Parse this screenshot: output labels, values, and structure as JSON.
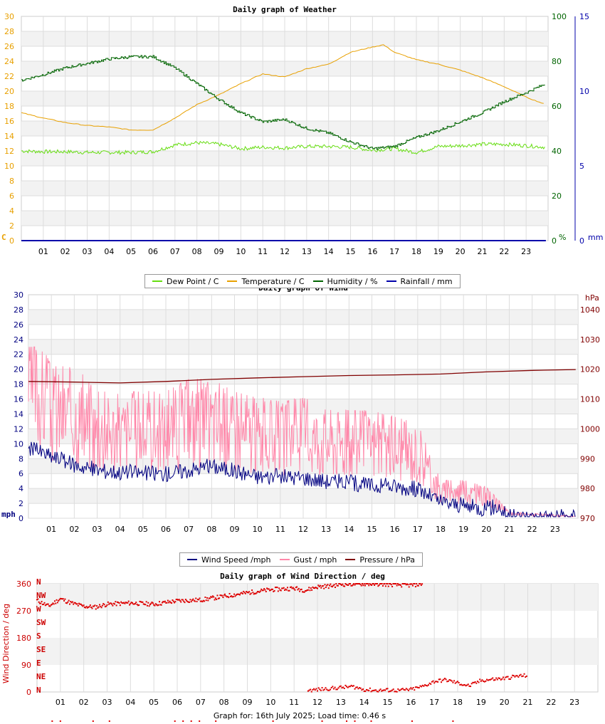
{
  "chart_data": [
    {
      "id": "weather",
      "type": "line",
      "title": "Daily graph of Weather",
      "hours": [
        "01",
        "02",
        "03",
        "04",
        "05",
        "06",
        "07",
        "08",
        "09",
        "10",
        "11",
        "12",
        "13",
        "14",
        "15",
        "16",
        "17",
        "18",
        "19",
        "20",
        "21",
        "22",
        "23"
      ],
      "x_range": [
        0,
        24
      ],
      "left_axis": {
        "unit_label": "C",
        "ylim": [
          0,
          30
        ],
        "ticks": [
          0,
          2,
          4,
          6,
          8,
          10,
          12,
          14,
          16,
          18,
          20,
          22,
          24,
          26,
          28,
          30
        ],
        "color": "#e8a000"
      },
      "right_axis_1": {
        "unit_label": "%",
        "ylim": [
          0,
          100
        ],
        "ticks": [
          0,
          20,
          40,
          60,
          80,
          100
        ],
        "color": "#006400"
      },
      "right_axis_2": {
        "unit_label": "mm",
        "ylim": [
          0,
          15
        ],
        "ticks": [
          0,
          5,
          10,
          15
        ],
        "color": "#0000aa"
      },
      "series": [
        {
          "name": "Dew Point / C",
          "color": "#66dd11",
          "axis": "left",
          "points": [
            [
              0,
              12
            ],
            [
              1,
              11.9
            ],
            [
              2,
              11.9
            ],
            [
              3,
              11.8
            ],
            [
              4,
              11.8
            ],
            [
              5,
              11.8
            ],
            [
              6,
              11.9
            ],
            [
              7,
              12.8
            ],
            [
              8,
              13.1
            ],
            [
              9,
              12.9
            ],
            [
              10,
              12.3
            ],
            [
              11,
              12.5
            ],
            [
              12,
              12.4
            ],
            [
              13,
              12.6
            ],
            [
              14,
              12.6
            ],
            [
              15,
              12.5
            ],
            [
              16,
              12.1
            ],
            [
              17,
              12.3
            ],
            [
              18,
              11.8
            ],
            [
              19,
              12.6
            ],
            [
              20,
              12.7
            ],
            [
              21,
              12.9
            ],
            [
              22,
              12.9
            ],
            [
              23,
              12.7
            ],
            [
              23.9,
              12.5
            ]
          ]
        },
        {
          "name": "Temperature / C",
          "color": "#e8a000",
          "axis": "left",
          "points": [
            [
              0,
              17.1
            ],
            [
              1,
              16.4
            ],
            [
              2,
              15.8
            ],
            [
              3,
              15.4
            ],
            [
              4,
              15.2
            ],
            [
              5,
              14.8
            ],
            [
              6,
              14.8
            ],
            [
              7,
              16.4
            ],
            [
              8,
              18.2
            ],
            [
              9,
              19.5
            ],
            [
              10,
              21.0
            ],
            [
              11,
              22.3
            ],
            [
              12,
              21.9
            ],
            [
              13,
              23.0
            ],
            [
              14,
              23.6
            ],
            [
              15,
              25.2
            ],
            [
              16,
              25.9
            ],
            [
              16.5,
              26.2
            ],
            [
              17,
              25.2
            ],
            [
              18,
              24.2
            ],
            [
              19,
              23.6
            ],
            [
              20,
              22.8
            ],
            [
              21,
              21.8
            ],
            [
              22,
              20.6
            ],
            [
              23,
              19.2
            ],
            [
              23.9,
              18.2
            ]
          ]
        },
        {
          "name": "Humidity / %",
          "color": "#006400",
          "axis": "right_1",
          "points": [
            [
              0,
              71.5
            ],
            [
              1,
              74
            ],
            [
              2,
              77
            ],
            [
              3,
              79
            ],
            [
              4,
              81
            ],
            [
              5,
              82
            ],
            [
              6,
              82
            ],
            [
              7,
              77
            ],
            [
              8,
              70
            ],
            [
              9,
              63
            ],
            [
              10,
              57
            ],
            [
              11,
              53
            ],
            [
              12,
              54
            ],
            [
              13,
              50
            ],
            [
              14,
              48
            ],
            [
              15,
              44
            ],
            [
              16,
              41
            ],
            [
              17,
              42
            ],
            [
              18,
              46
            ],
            [
              19,
              49
            ],
            [
              20,
              53
            ],
            [
              21,
              57
            ],
            [
              22,
              62
            ],
            [
              23,
              66
            ],
            [
              23.9,
              70
            ]
          ]
        },
        {
          "name": "Rainfall / mm",
          "color": "#0000aa",
          "axis": "right_2",
          "points": [
            [
              0,
              0
            ],
            [
              23.9,
              0
            ]
          ]
        }
      ]
    },
    {
      "id": "wind",
      "type": "line",
      "title": "Daily graph of Wind",
      "hours": [
        "01",
        "02",
        "03",
        "04",
        "05",
        "06",
        "07",
        "08",
        "09",
        "10",
        "11",
        "12",
        "13",
        "14",
        "15",
        "16",
        "17",
        "18",
        "19",
        "20",
        "21",
        "22",
        "23"
      ],
      "x_range": [
        0,
        24
      ],
      "left_axis": {
        "unit_label": "mph",
        "ylim": [
          0,
          30
        ],
        "ticks": [
          0,
          2,
          4,
          6,
          8,
          10,
          12,
          14,
          16,
          18,
          20,
          22,
          24,
          26,
          28,
          30
        ],
        "color": "#000080"
      },
      "right_axis": {
        "unit_label": "hPa",
        "ylim": [
          970,
          1045
        ],
        "ticks": [
          970,
          980,
          990,
          1000,
          1010,
          1020,
          1030,
          1040
        ],
        "color": "#800000"
      },
      "series": [
        {
          "name": "Wind Speed /mph",
          "color": "#000080",
          "axis": "left",
          "points": [
            [
              0,
              9.5
            ],
            [
              1,
              8.3
            ],
            [
              2,
              7.2
            ],
            [
              3,
              6.5
            ],
            [
              4,
              6.2
            ],
            [
              5,
              6.1
            ],
            [
              6,
              6.0
            ],
            [
              7,
              6.5
            ],
            [
              8,
              7.0
            ],
            [
              9,
              6.4
            ],
            [
              10,
              5.6
            ],
            [
              11,
              5.6
            ],
            [
              12,
              5.5
            ],
            [
              13,
              5.0
            ],
            [
              14,
              4.8
            ],
            [
              15,
              4.4
            ],
            [
              16,
              4.3
            ],
            [
              17,
              3.9
            ],
            [
              18,
              2.2
            ],
            [
              19,
              1.7
            ],
            [
              20,
              1.3
            ],
            [
              20.5,
              1.6
            ],
            [
              21,
              0.2
            ],
            [
              23.9,
              0.2
            ]
          ]
        },
        {
          "name": "Gust / mph",
          "color": "#ff88aa",
          "axis": "left",
          "points": [
            [
              0,
              16
            ],
            [
              1,
              12
            ],
            [
              2,
              12
            ],
            [
              3,
              10
            ],
            [
              4,
              10
            ],
            [
              5,
              10
            ],
            [
              6,
              10
            ],
            [
              7,
              11
            ],
            [
              8,
              11
            ],
            [
              9,
              10
            ],
            [
              10,
              9.5
            ],
            [
              11,
              9.2
            ],
            [
              12,
              9.5
            ],
            [
              13,
              9
            ],
            [
              14,
              8.5
            ],
            [
              15,
              8.5
            ],
            [
              16,
              8
            ],
            [
              17,
              7.5
            ],
            [
              18,
              3
            ],
            [
              19,
              3
            ],
            [
              20,
              2.5
            ],
            [
              21,
              0.5
            ],
            [
              23.9,
              0.2
            ]
          ]
        },
        {
          "name": "Pressure / hPa",
          "color": "#800000",
          "axis": "right",
          "points": [
            [
              0,
              1015.9
            ],
            [
              2,
              1015.7
            ],
            [
              4,
              1015.4
            ],
            [
              6,
              1015.9
            ],
            [
              8,
              1016.6
            ],
            [
              10,
              1017.1
            ],
            [
              12,
              1017.5
            ],
            [
              14,
              1017.9
            ],
            [
              16,
              1018.1
            ],
            [
              18,
              1018.4
            ],
            [
              20,
              1019.1
            ],
            [
              22,
              1019.6
            ],
            [
              23.9,
              1019.9
            ]
          ]
        }
      ]
    },
    {
      "id": "wind_direction",
      "type": "scatter",
      "title": "Daily graph of Wind Direction / deg",
      "ylabel": "Wind Direction / deg",
      "hours": [
        "01",
        "02",
        "03",
        "04",
        "05",
        "06",
        "07",
        "08",
        "09",
        "10",
        "11",
        "12",
        "13",
        "14",
        "15",
        "16",
        "17",
        "18",
        "19",
        "20",
        "21",
        "22",
        "23"
      ],
      "x_range": [
        0,
        24
      ],
      "ylim": [
        0,
        360
      ],
      "ticks": [
        0,
        90,
        180,
        270,
        360
      ],
      "compass_labels": [
        "N",
        "NE",
        "E",
        "SE",
        "S",
        "SW",
        "W",
        "NW",
        "N"
      ],
      "series": [
        {
          "name": "Wind Direction / deg",
          "color": "#dd0000",
          "points": [
            [
              0,
              305
            ],
            [
              0.5,
              285
            ],
            [
              1,
              310
            ],
            [
              1.5,
              295
            ],
            [
              2,
              285
            ],
            [
              2.5,
              282
            ],
            [
              3,
              292
            ],
            [
              4,
              296
            ],
            [
              5,
              292
            ],
            [
              6,
              303
            ],
            [
              7,
              306
            ],
            [
              8,
              318
            ],
            [
              9,
              330
            ],
            [
              10,
              340
            ],
            [
              11,
              345
            ],
            [
              11.5,
              338
            ],
            [
              12,
              350
            ],
            [
              12.5,
              352
            ],
            [
              13,
              358
            ],
            [
              14,
              360
            ],
            [
              15,
              358
            ],
            [
              16,
              355
            ],
            [
              16.5,
              360
            ],
            [
              11.6,
              5
            ],
            [
              13.5,
              18
            ],
            [
              14,
              8
            ],
            [
              14.5,
              5
            ],
            [
              15,
              6
            ],
            [
              15.5,
              5
            ],
            [
              16,
              8
            ],
            [
              16.5,
              18
            ],
            [
              17,
              35
            ],
            [
              17.5,
              40
            ],
            [
              18,
              30
            ],
            [
              18.5,
              20
            ],
            [
              19,
              38
            ],
            [
              19.5,
              42
            ],
            [
              20,
              45
            ],
            [
              20.5,
              52
            ],
            [
              21,
              55
            ]
          ]
        }
      ]
    }
  ],
  "legends": {
    "weather": [
      "Dew Point / C",
      "Temperature / C",
      "Humidity / %",
      "Rainfall / mm"
    ],
    "wind": [
      "Wind Speed /mph",
      "Gust / mph",
      "Pressure / hPa"
    ]
  },
  "footer": {
    "text": "Graph for: 16th July 2025; Load time: 0.46 s"
  }
}
